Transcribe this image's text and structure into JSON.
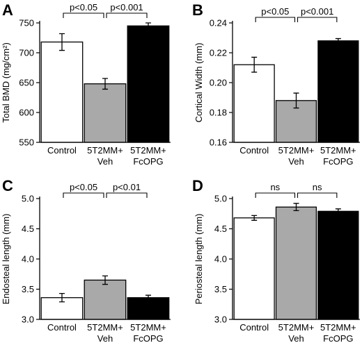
{
  "chart_data": [
    {
      "panel": "A",
      "type": "bar",
      "ylabel": "Total BMD (mg/cm²)",
      "ylim": [
        550,
        750
      ],
      "yticks": [
        550,
        600,
        650,
        700,
        750
      ],
      "categories": [
        [
          "Control"
        ],
        [
          "5T2MM+",
          "Veh"
        ],
        [
          "5T2MM+",
          "FcOPG"
        ]
      ],
      "values": [
        718,
        648,
        745
      ],
      "errors": [
        14,
        9,
        5
      ],
      "colors": [
        "#ffffff",
        "#a9a9a9",
        "#000000"
      ],
      "comparisons": [
        {
          "from": 0,
          "to": 1,
          "label": "p<0.05"
        },
        {
          "from": 1,
          "to": 2,
          "label": "p<0.001"
        }
      ]
    },
    {
      "panel": "B",
      "type": "bar",
      "ylabel": "Cortical Width (mm)",
      "ylim": [
        0.16,
        0.24
      ],
      "yticks": [
        0.16,
        0.18,
        0.2,
        0.22,
        0.24
      ],
      "tick_decimals": 2,
      "categories": [
        [
          "Control"
        ],
        [
          "5T2MM+",
          "Veh"
        ],
        [
          "5T2MM+",
          "FcOPG"
        ]
      ],
      "values": [
        0.212,
        0.188,
        0.228
      ],
      "errors": [
        0.005,
        0.005,
        0.0015
      ],
      "colors": [
        "#ffffff",
        "#a9a9a9",
        "#000000"
      ],
      "comparisons": [
        {
          "from": 0,
          "to": 1,
          "label": "p<0.05"
        },
        {
          "from": 1,
          "to": 2,
          "label": "p<0.001"
        }
      ]
    },
    {
      "panel": "C",
      "type": "bar",
      "ylabel": "Endosteal length (mm)",
      "ylim": [
        3.0,
        5.0
      ],
      "yticks": [
        3.0,
        3.5,
        4.0,
        4.5,
        5.0
      ],
      "tick_decimals": 1,
      "categories": [
        [
          "Control"
        ],
        [
          "5T2MM+",
          "Veh"
        ],
        [
          "5T2MM+",
          "FcOPG"
        ]
      ],
      "values": [
        3.36,
        3.65,
        3.36
      ],
      "errors": [
        0.07,
        0.07,
        0.04
      ],
      "colors": [
        "#ffffff",
        "#a9a9a9",
        "#000000"
      ],
      "comparisons": [
        {
          "from": 0,
          "to": 1,
          "label": "p<0.05"
        },
        {
          "from": 1,
          "to": 2,
          "label": "p<0.01"
        }
      ]
    },
    {
      "panel": "D",
      "type": "bar",
      "ylabel": "Periosteal length (mm)",
      "ylim": [
        3.0,
        5.0
      ],
      "yticks": [
        3.0,
        3.5,
        4.0,
        4.5,
        5.0
      ],
      "tick_decimals": 1,
      "categories": [
        [
          "Control"
        ],
        [
          "5T2MM+",
          "Veh"
        ],
        [
          "5T2MM+",
          "FcOPG"
        ]
      ],
      "values": [
        4.68,
        4.86,
        4.79
      ],
      "errors": [
        0.04,
        0.06,
        0.04
      ],
      "colors": [
        "#ffffff",
        "#a9a9a9",
        "#000000"
      ],
      "comparisons": [
        {
          "from": 0,
          "to": 1,
          "label": "ns"
        },
        {
          "from": 1,
          "to": 2,
          "label": "ns"
        }
      ]
    }
  ]
}
